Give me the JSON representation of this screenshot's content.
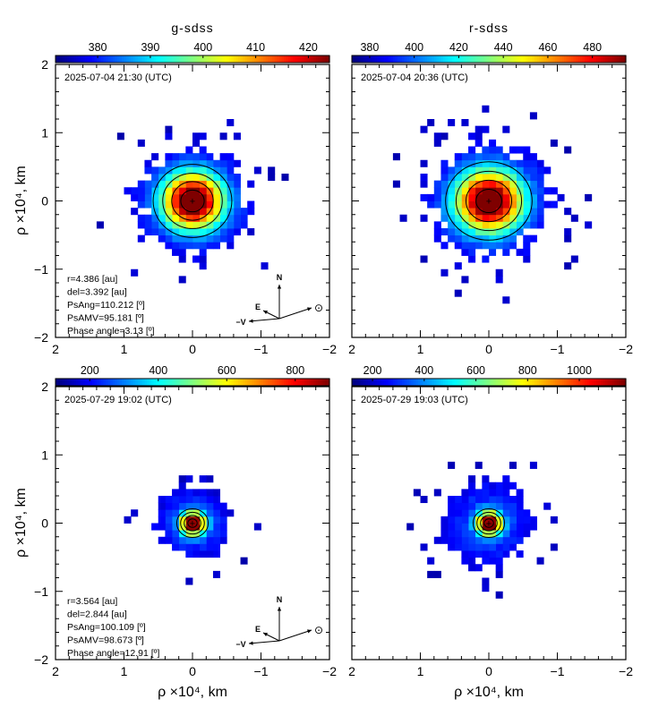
{
  "figure": {
    "bottom_axis_label": "ρ ×10⁴, km",
    "left_axis_label": "ρ ×10⁴, km",
    "colors": {
      "colormap": [
        "#00007f",
        "#0000ff",
        "#0080ff",
        "#00ffff",
        "#80ff80",
        "#ffff00",
        "#ff8000",
        "#ff0000",
        "#7f0000"
      ],
      "contour": "#000000"
    }
  },
  "chart_data": [
    {
      "type": "heatmap",
      "panel": "top-left",
      "title": "g-sdss",
      "timestamp": "2025-07-04 21:30 (UTC)",
      "xlim": [
        2,
        -2
      ],
      "ylim": [
        -2,
        2
      ],
      "xticks": [
        "2",
        "1",
        "0",
        "−1",
        "−2"
      ],
      "yticks": [
        "2",
        "1",
        "0",
        "−1",
        "−2"
      ],
      "colorbar": {
        "min": 372,
        "max": 424,
        "ticks": [
          "380",
          "390",
          "400",
          "410",
          "420"
        ],
        "tick_values": [
          380,
          390,
          400,
          410,
          420
        ]
      },
      "core": {
        "peak": 424,
        "background": 372,
        "sigma_x": 0.3,
        "sigma_y": 0.28,
        "extent": 0.95,
        "center": [
          0.0,
          0.0
        ]
      },
      "info": [
        "r=4.386 [au]",
        "del=3.392 [au]",
        "PsAng=110.212 [º]",
        "PsAMV=95.181 [º]",
        "Phase angle=3.13 [º]"
      ],
      "compass": {
        "north": "N",
        "east": "E",
        "velocity": "−V",
        "sun": "⊙"
      }
    },
    {
      "type": "heatmap",
      "panel": "top-right",
      "title": "r-sdss",
      "timestamp": "2025-07-04 20:36 (UTC)",
      "xlim": [
        2,
        -2
      ],
      "ylim": [
        -2,
        2
      ],
      "xticks": [
        "2",
        "1",
        "0",
        "−1",
        "−2"
      ],
      "yticks": [
        "2",
        "1",
        "0",
        "−1",
        "−2"
      ],
      "colorbar": {
        "min": 372,
        "max": 495,
        "ticks": [
          "380",
          "400",
          "420",
          "440",
          "460",
          "480"
        ],
        "tick_values": [
          380,
          400,
          420,
          440,
          460,
          480
        ]
      },
      "core": {
        "peak": 495,
        "background": 372,
        "sigma_x": 0.33,
        "sigma_y": 0.3,
        "extent": 1.0,
        "center": [
          0.0,
          0.0
        ]
      }
    },
    {
      "type": "heatmap",
      "panel": "bottom-left",
      "title": "",
      "timestamp": "2025-07-29 19:02 (UTC)",
      "xlim": [
        2,
        -2
      ],
      "ylim": [
        -2,
        2
      ],
      "xticks": [
        "2",
        "1",
        "0",
        "−1",
        "−2"
      ],
      "yticks": [
        "2",
        "1",
        "0",
        "−1",
        "−2"
      ],
      "colorbar": {
        "min": 100,
        "max": 900,
        "ticks": [
          "200",
          "400",
          "600",
          "800"
        ],
        "tick_values": [
          200,
          400,
          600,
          800
        ]
      },
      "core": {
        "peak": 900,
        "background": 100,
        "sigma_x": 0.12,
        "sigma_y": 0.11,
        "extent": 0.62,
        "center": [
          0.0,
          0.0
        ]
      },
      "info": [
        "r=3.564 [au]",
        "del=2.844 [au]",
        "PsAng=100.109 [º]",
        "PsAMV=98.673 [º]",
        "Phase angle=12.91 [º]"
      ],
      "compass": {
        "north": "N",
        "east": "E",
        "velocity": "−V",
        "sun": "⊙"
      }
    },
    {
      "type": "heatmap",
      "panel": "bottom-right",
      "title": "",
      "timestamp": "2025-07-29 19:03 (UTC)",
      "xlim": [
        2,
        -2
      ],
      "ylim": [
        -2,
        2
      ],
      "xticks": [
        "2",
        "1",
        "0",
        "−1",
        "−2"
      ],
      "yticks": [
        "2",
        "1",
        "0",
        "−1",
        "−2"
      ],
      "colorbar": {
        "min": 120,
        "max": 1180,
        "ticks": [
          "200",
          "400",
          "600",
          "800",
          "1000"
        ],
        "tick_values": [
          200,
          400,
          600,
          800,
          1000
        ]
      },
      "core": {
        "peak": 1180,
        "background": 120,
        "sigma_x": 0.12,
        "sigma_y": 0.11,
        "extent": 0.75,
        "center": [
          0.0,
          0.0
        ]
      }
    }
  ]
}
